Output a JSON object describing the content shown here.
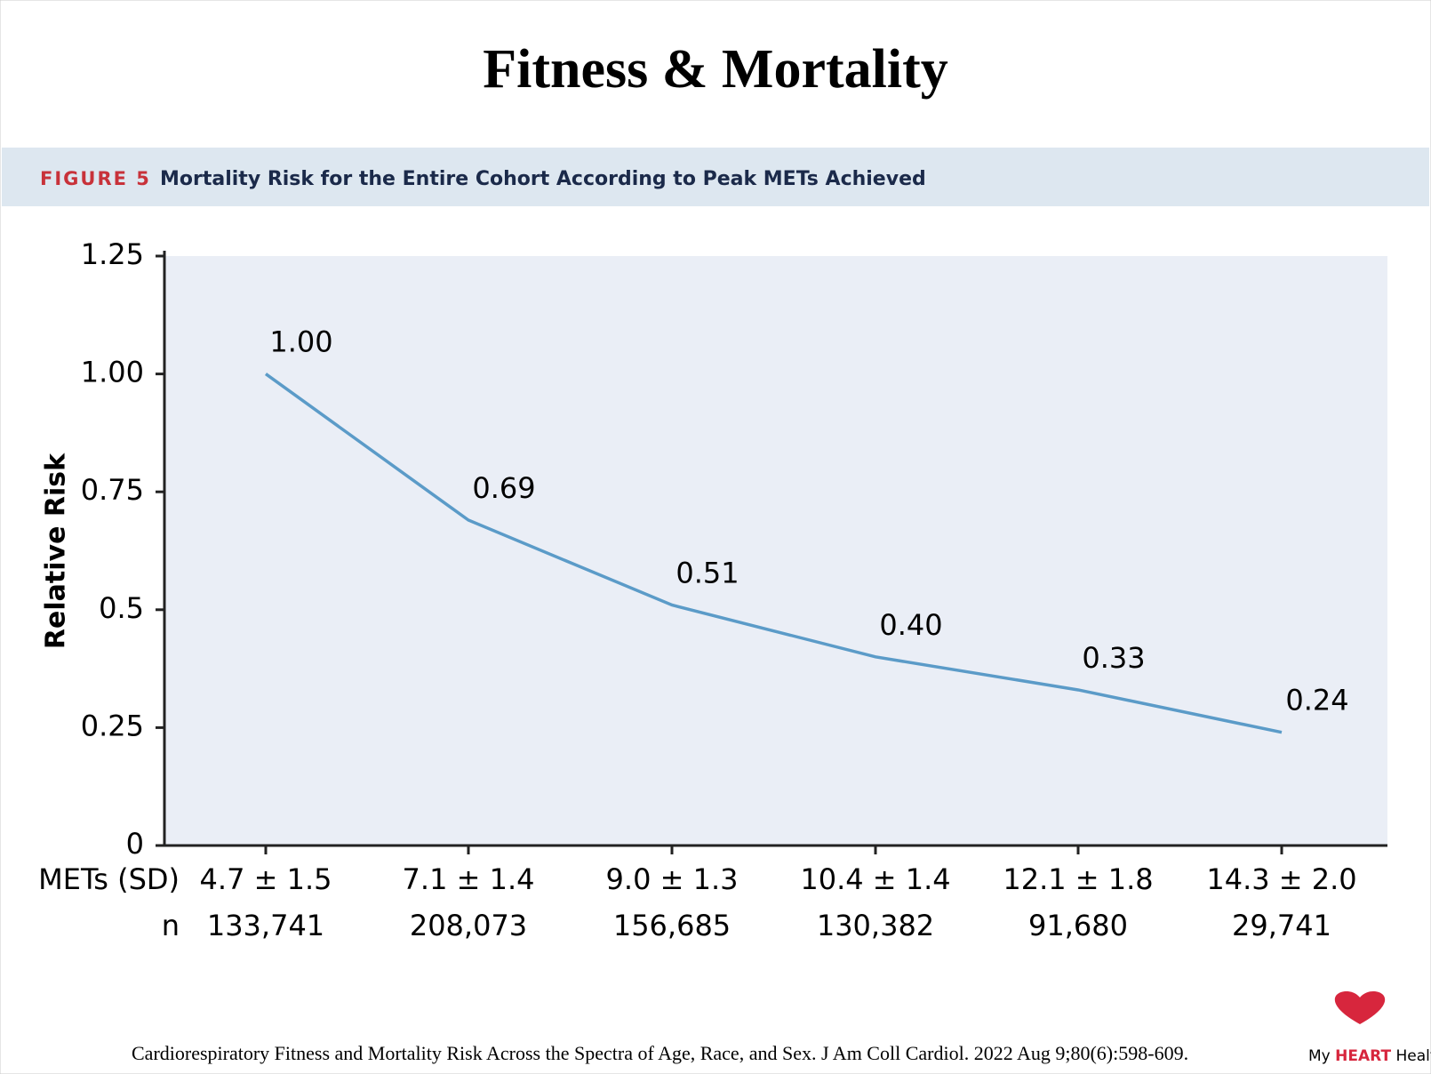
{
  "title": "Fitness & Mortality",
  "figure_label": "FIGURE 5",
  "figure_title": "Mortality Risk for the Entire Cohort According to Peak METs Achieved",
  "chart_data": {
    "type": "line",
    "y_label": "Relative Risk",
    "x_label": "METs (SD)",
    "categories": [
      "4.7 ± 1.5",
      "7.1 ± 1.4",
      "9.0 ± 1.3",
      "10.4 ± 1.4",
      "12.1 ± 1.8",
      "14.3 ± 2.0"
    ],
    "n_label": "n",
    "n_values": [
      "133,741",
      "208,073",
      "156,685",
      "130,382",
      "91,680",
      "29,741"
    ],
    "values": [
      1.0,
      0.69,
      0.51,
      0.4,
      0.33,
      0.24
    ],
    "value_labels": [
      "1.00",
      "0.69",
      "0.51",
      "0.40",
      "0.33",
      "0.24"
    ],
    "color": "#5b9bc8",
    "ylim": [
      0,
      1.25
    ],
    "yticks": [
      0,
      0.25,
      0.5,
      0.75,
      {
        "value": 1,
        "label": "1.00"
      },
      1.25
    ]
  },
  "citation": "Cardiorespiratory Fitness and Mortality Risk Across the Spectra of Age, Race, and Sex. J Am Coll Cardiol. 2022 Aug 9;80(6):598-609.",
  "logo": {
    "my": "My",
    "heart": "HEART",
    "health": "Health"
  }
}
